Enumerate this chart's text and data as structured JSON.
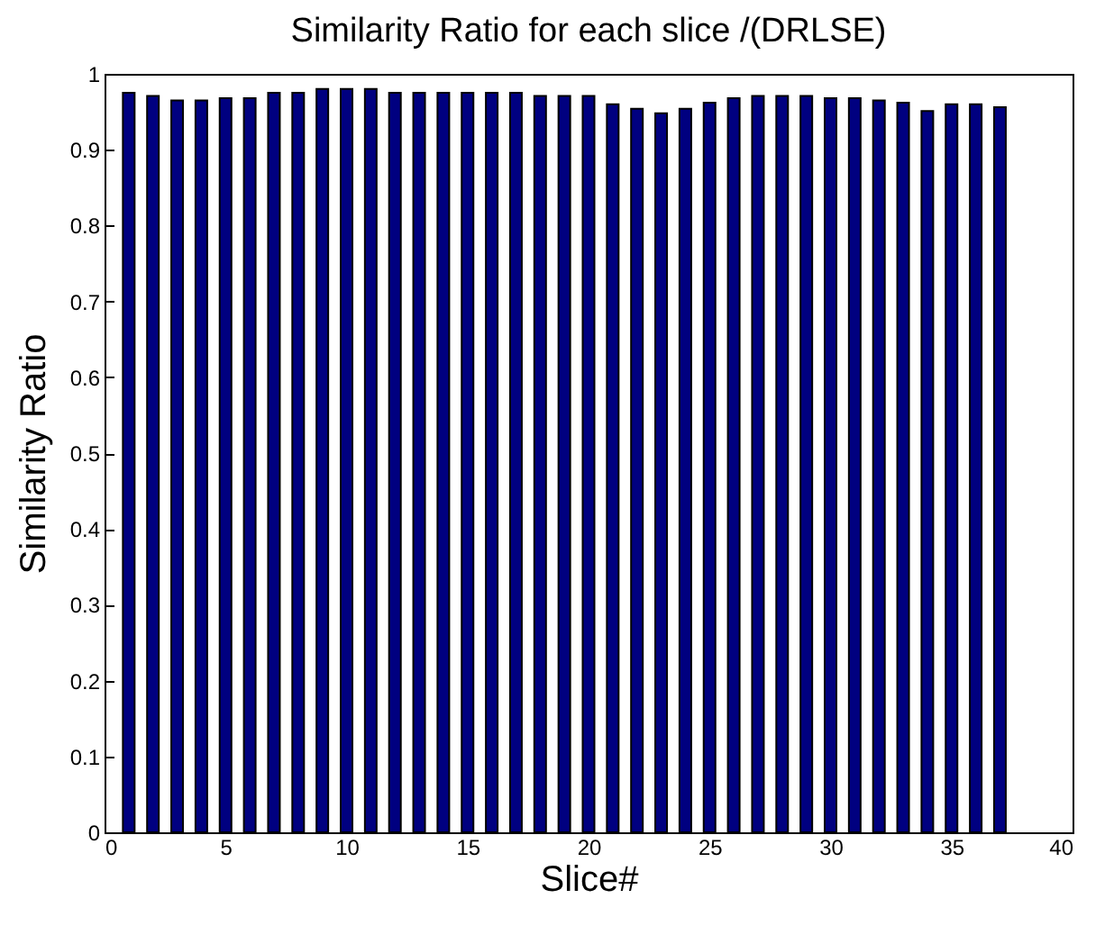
{
  "chart_data": {
    "type": "bar",
    "title": "Similarity Ratio for each slice /(DRLSE)",
    "xlabel": "Slice#",
    "ylabel": "Similarity Ratio",
    "x": [
      1,
      2,
      3,
      4,
      5,
      6,
      7,
      8,
      9,
      10,
      11,
      12,
      13,
      14,
      15,
      16,
      17,
      18,
      19,
      20,
      21,
      22,
      23,
      24,
      25,
      26,
      27,
      28,
      29,
      30,
      31,
      32,
      33,
      34,
      35,
      36,
      37
    ],
    "values": [
      0.975,
      0.971,
      0.965,
      0.965,
      0.968,
      0.968,
      0.975,
      0.975,
      0.98,
      0.98,
      0.98,
      0.975,
      0.975,
      0.975,
      0.975,
      0.975,
      0.975,
      0.971,
      0.971,
      0.971,
      0.96,
      0.954,
      0.948,
      0.954,
      0.962,
      0.968,
      0.971,
      0.971,
      0.971,
      0.968,
      0.968,
      0.965,
      0.962,
      0.951,
      0.96,
      0.96,
      0.956
    ],
    "color": "#000080",
    "xlim": [
      0,
      40
    ],
    "xticks": [
      0,
      5,
      10,
      15,
      20,
      25,
      30,
      35,
      40
    ],
    "ylim": [
      0,
      1
    ],
    "yticks": [
      0,
      0.1,
      0.2,
      0.3,
      0.4,
      0.5,
      0.6,
      0.7,
      0.8,
      0.9,
      1
    ],
    "grid": false
  }
}
